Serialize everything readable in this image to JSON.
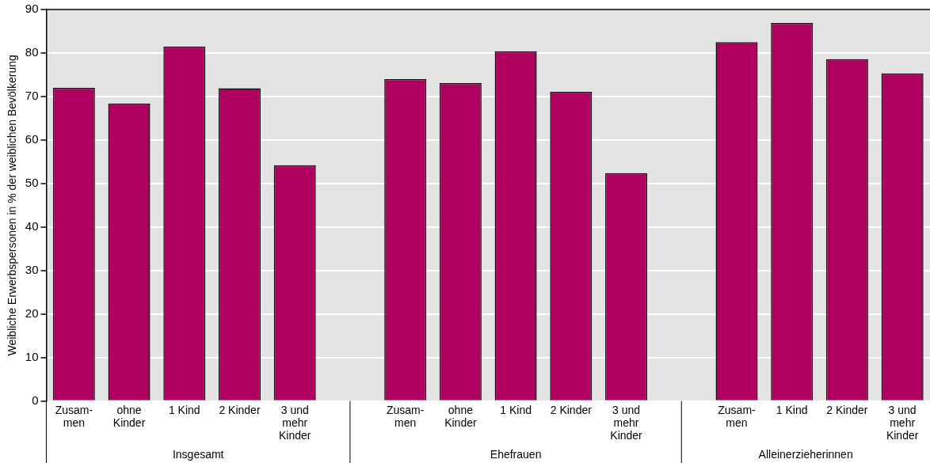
{
  "chart_data": {
    "type": "bar",
    "ylabel": "Weibliche Erwerbspersonen in % der weiblichen Bevölkerung",
    "categories": [
      "Zusam-\nmen",
      "ohne\nKinder",
      "1 Kind",
      "2 Kinder",
      "3 und\nmehr\nKinder",
      null,
      "Zusam-\nmen",
      "ohne\nKinder",
      "1 Kind",
      "2 Kinder",
      "3 und\nmehr\nKinder",
      null,
      "Zusam-\nmen",
      "1 Kind",
      "2 Kinder",
      "3 und\nmehr\nKinder"
    ],
    "values": [
      72.0,
      68.4,
      81.5,
      71.9,
      54.2,
      null,
      74.0,
      73.1,
      80.4,
      71.1,
      52.4,
      null,
      82.5,
      86.9,
      78.6,
      75.3
    ],
    "color": "#b0005f",
    "ylim": [
      0,
      90
    ],
    "yticks": [
      0,
      10,
      20,
      30,
      40,
      50,
      60,
      70,
      80,
      90
    ],
    "grid": "y",
    "legend": false,
    "annotations": [
      "Insgesamt",
      "Ehefrauen",
      "Alleinerzieherinnen"
    ]
  }
}
